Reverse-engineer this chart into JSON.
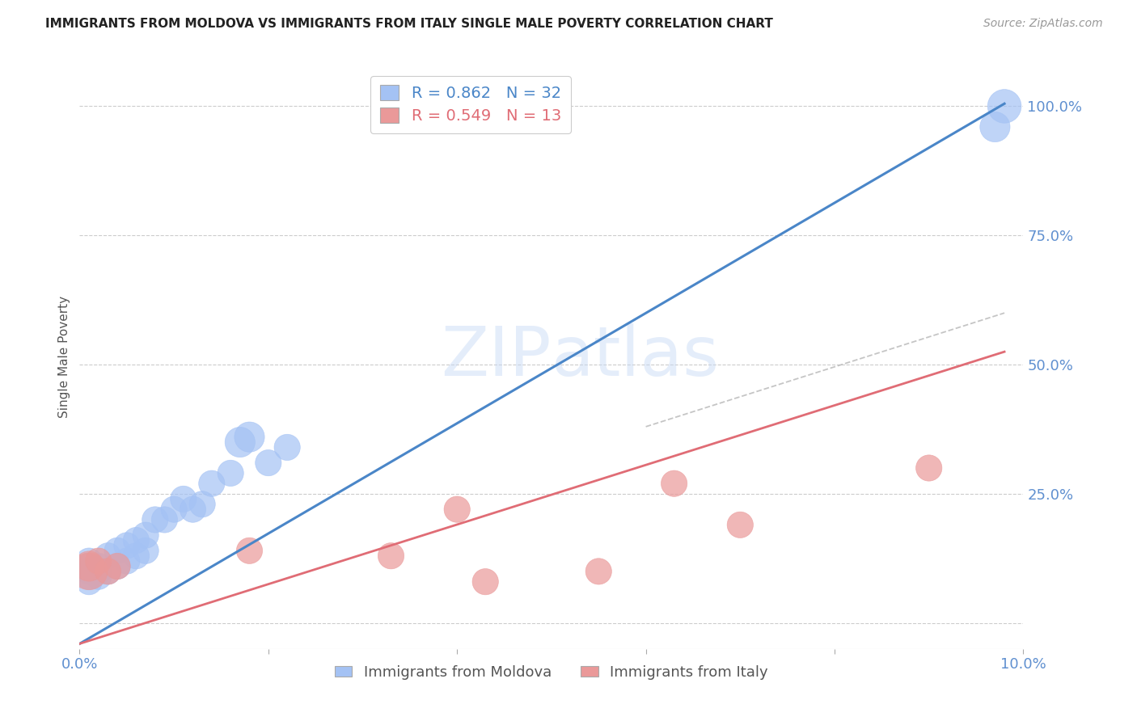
{
  "title": "IMMIGRANTS FROM MOLDOVA VS IMMIGRANTS FROM ITALY SINGLE MALE POVERTY CORRELATION CHART",
  "source": "Source: ZipAtlas.com",
  "ylabel": "Single Male Poverty",
  "xlim": [
    0.0,
    0.1
  ],
  "ylim": [
    -0.05,
    1.08
  ],
  "moldova_R": 0.862,
  "moldova_N": 32,
  "italy_R": 0.549,
  "italy_N": 13,
  "moldova_color": "#a4c2f4",
  "italy_color": "#ea9999",
  "moldova_line_color": "#4a86c8",
  "italy_line_color": "#e06c75",
  "background_color": "#ffffff",
  "grid_color": "#cccccc",
  "axis_label_color": "#6090d0",
  "title_color": "#222222",
  "moldova_x": [
    0.001,
    0.001,
    0.001,
    0.001,
    0.001,
    0.002,
    0.002,
    0.002,
    0.003,
    0.003,
    0.004,
    0.004,
    0.005,
    0.005,
    0.006,
    0.006,
    0.007,
    0.007,
    0.008,
    0.009,
    0.01,
    0.011,
    0.012,
    0.013,
    0.014,
    0.016,
    0.017,
    0.018,
    0.02,
    0.022,
    0.097,
    0.098
  ],
  "moldova_y": [
    0.08,
    0.09,
    0.1,
    0.11,
    0.12,
    0.09,
    0.1,
    0.11,
    0.1,
    0.13,
    0.11,
    0.14,
    0.12,
    0.15,
    0.13,
    0.16,
    0.14,
    0.17,
    0.2,
    0.2,
    0.22,
    0.24,
    0.22,
    0.23,
    0.27,
    0.29,
    0.35,
    0.36,
    0.31,
    0.34,
    0.96,
    1.0
  ],
  "moldova_sizes": [
    30,
    30,
    30,
    30,
    30,
    30,
    30,
    30,
    30,
    30,
    30,
    30,
    30,
    30,
    30,
    30,
    30,
    30,
    30,
    30,
    30,
    30,
    30,
    30,
    30,
    30,
    40,
    40,
    30,
    30,
    40,
    50
  ],
  "italy_x": [
    0.001,
    0.001,
    0.002,
    0.003,
    0.004,
    0.018,
    0.033,
    0.04,
    0.043,
    0.055,
    0.063,
    0.07,
    0.09
  ],
  "italy_y": [
    0.1,
    0.11,
    0.12,
    0.1,
    0.11,
    0.14,
    0.13,
    0.22,
    0.08,
    0.1,
    0.27,
    0.19,
    0.3
  ],
  "italy_sizes": [
    60,
    40,
    30,
    30,
    30,
    30,
    30,
    30,
    30,
    30,
    30,
    30,
    30
  ],
  "mol_line": [
    0.0,
    0.098,
    -0.04,
    1.005
  ],
  "ita_line": [
    0.0,
    0.098,
    -0.04,
    0.525
  ],
  "dash_line": [
    0.06,
    0.098,
    0.38,
    0.6
  ]
}
